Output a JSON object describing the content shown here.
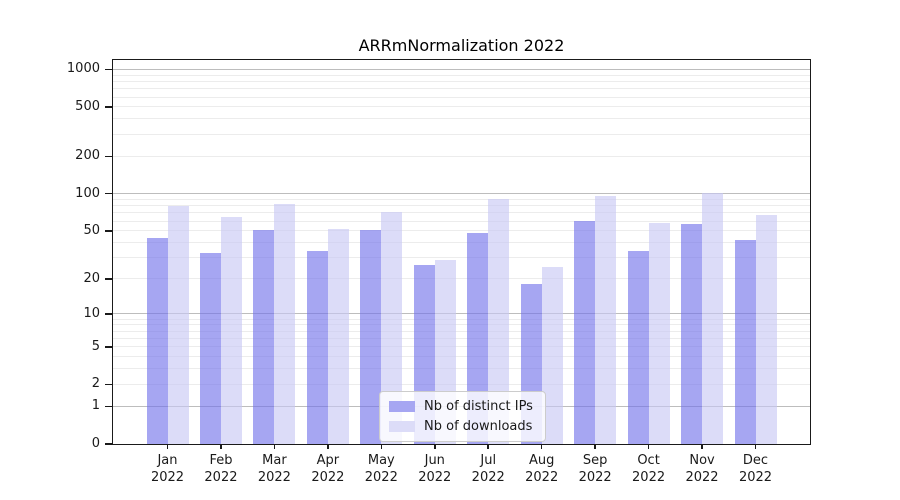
{
  "figure": {
    "title": "ARRmNormalization 2022"
  },
  "chart_data": {
    "type": "bar",
    "title": "ARRmNormalization 2022",
    "categories": [
      "Jan 2022",
      "Feb 2022",
      "Mar 2022",
      "Apr 2022",
      "May 2022",
      "Jun 2022",
      "Jul 2022",
      "Aug 2022",
      "Sep 2022",
      "Oct 2022",
      "Nov 2022",
      "Dec 2022"
    ],
    "series": [
      {
        "name": "Nb of distinct IPs",
        "key": "distinct-ips",
        "color": "rgba(112,112,234,0.62)",
        "swatch_color": "#a6a6f2",
        "values": [
          44,
          33,
          51,
          34,
          51,
          26,
          48,
          18,
          60,
          34,
          57,
          42
        ]
      },
      {
        "name": "Nb of downloads",
        "key": "downloads",
        "color": "rgba(198,198,244,0.62)",
        "swatch_color": "#dcdcf8",
        "values": [
          80,
          65,
          82,
          52,
          71,
          29,
          91,
          25,
          96,
          58,
          102,
          67
        ]
      }
    ],
    "xlabel": "",
    "ylabel": "",
    "yscale": "log1p",
    "ylim": [
      0,
      1250
    ],
    "yticks": [
      0,
      1,
      2,
      5,
      10,
      20,
      50,
      100,
      200,
      500,
      1000
    ],
    "major_grid_values": [
      1,
      10,
      100,
      1000
    ],
    "minor_grid_values": [
      2,
      3,
      4,
      5,
      6,
      7,
      8,
      9,
      20,
      30,
      40,
      50,
      60,
      70,
      80,
      90,
      200,
      300,
      400,
      500,
      600,
      700,
      800,
      900
    ],
    "grid": true,
    "legend_position": "lower center"
  },
  "colors": {
    "bar_dark": "rgba(112,112,234,0.62)",
    "bar_light": "rgba(198,198,244,0.62)",
    "grid_major": "#bdbdbd",
    "grid_minor": "#ececec",
    "axis": "#1a1a1a",
    "background": "#ffffff"
  }
}
